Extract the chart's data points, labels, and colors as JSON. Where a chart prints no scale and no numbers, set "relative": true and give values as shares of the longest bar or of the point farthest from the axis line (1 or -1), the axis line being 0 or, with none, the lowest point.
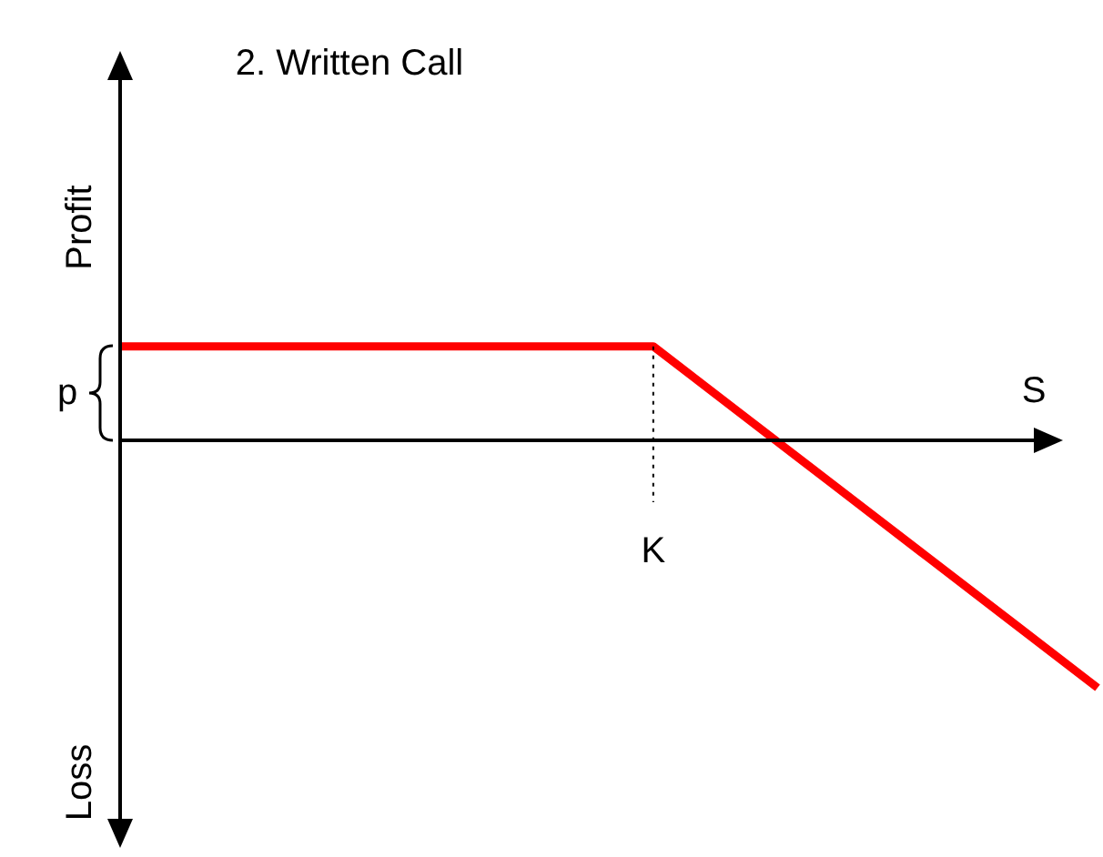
{
  "chart_data": {
    "type": "line",
    "title": "2. Written Call",
    "xlabel": "S",
    "ylabel": "Profit",
    "relative": true,
    "categories": [
      null,
      null,
      null,
      null,
      null,
      null,
      null,
      null,
      null,
      null,
      null,
      null
    ],
    "series": [
      {
        "color": "#ff0000",
        "values": [
          0.38,
          0.38,
          0.38,
          0.38,
          0.38,
          0.38,
          0.38,
          0.104,
          -0.172,
          -0.448,
          -0.724,
          -1
        ]
      }
    ],
    "annotations": [
      "Loss",
      "p",
      "K"
    ],
    "line_style": "solid",
    "marker": "none"
  }
}
